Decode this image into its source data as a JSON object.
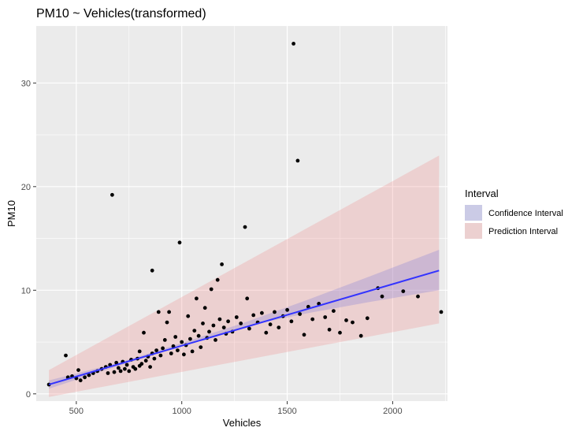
{
  "chart_data": {
    "type": "scatter",
    "title": "PM10 ~ Vehicles(transformed)",
    "xlabel": "Vehicles",
    "ylabel": "PM10",
    "xlim": [
      310,
      2260
    ],
    "ylim": [
      -0.7,
      35.5
    ],
    "x_ticks": [
      500,
      1000,
      1500,
      2000
    ],
    "y_ticks": [
      0,
      10,
      20,
      30
    ],
    "grid": true,
    "legend": {
      "title": "Interval",
      "placement": "right",
      "items": [
        {
          "label": "Confidence Interval",
          "color": "#6b6bd6",
          "opacity": 0.25
        },
        {
          "label": "Prediction Interval",
          "color": "#f08080",
          "opacity": 0.25
        }
      ]
    },
    "colors": {
      "panel": "#ebebeb",
      "grid": "#ffffff",
      "points": "#000000",
      "fit_line": "#3333ff",
      "confidence": "#6b6bd6",
      "prediction": "#f08080"
    },
    "fit_line": {
      "x": [
        370,
        2220
      ],
      "y": [
        0.9,
        11.9
      ]
    },
    "confidence_band": {
      "x": [
        370,
        700,
        1000,
        1300,
        1600,
        1900,
        2220
      ],
      "lower": [
        0.5,
        2.7,
        4.6,
        6.5,
        7.8,
        8.9,
        10.0
      ],
      "upper": [
        1.3,
        3.0,
        4.9,
        6.9,
        9.1,
        11.4,
        13.9
      ]
    },
    "prediction_band": {
      "x": [
        370,
        2220
      ],
      "lower": [
        -0.3,
        6.8
      ],
      "upper": [
        2.3,
        23.0
      ]
    },
    "points": [
      {
        "x": 370,
        "y": 0.9
      },
      {
        "x": 450,
        "y": 3.7
      },
      {
        "x": 460,
        "y": 1.6
      },
      {
        "x": 480,
        "y": 1.7
      },
      {
        "x": 500,
        "y": 1.5
      },
      {
        "x": 510,
        "y": 2.3
      },
      {
        "x": 520,
        "y": 1.3
      },
      {
        "x": 540,
        "y": 1.6
      },
      {
        "x": 560,
        "y": 1.8
      },
      {
        "x": 580,
        "y": 2.0
      },
      {
        "x": 600,
        "y": 2.2
      },
      {
        "x": 620,
        "y": 2.4
      },
      {
        "x": 640,
        "y": 2.6
      },
      {
        "x": 650,
        "y": 2.0
      },
      {
        "x": 660,
        "y": 2.8
      },
      {
        "x": 670,
        "y": 19.2
      },
      {
        "x": 680,
        "y": 2.1
      },
      {
        "x": 690,
        "y": 3.0
      },
      {
        "x": 700,
        "y": 2.5
      },
      {
        "x": 710,
        "y": 2.2
      },
      {
        "x": 720,
        "y": 3.1
      },
      {
        "x": 730,
        "y": 2.4
      },
      {
        "x": 740,
        "y": 2.8
      },
      {
        "x": 750,
        "y": 2.2
      },
      {
        "x": 760,
        "y": 3.3
      },
      {
        "x": 770,
        "y": 2.6
      },
      {
        "x": 780,
        "y": 2.4
      },
      {
        "x": 790,
        "y": 3.4
      },
      {
        "x": 800,
        "y": 4.1
      },
      {
        "x": 800,
        "y": 2.7
      },
      {
        "x": 810,
        "y": 2.9
      },
      {
        "x": 820,
        "y": 5.9
      },
      {
        "x": 830,
        "y": 3.2
      },
      {
        "x": 840,
        "y": 3.6
      },
      {
        "x": 850,
        "y": 2.6
      },
      {
        "x": 860,
        "y": 11.9
      },
      {
        "x": 860,
        "y": 3.9
      },
      {
        "x": 870,
        "y": 3.4
      },
      {
        "x": 880,
        "y": 4.2
      },
      {
        "x": 890,
        "y": 7.9
      },
      {
        "x": 900,
        "y": 3.7
      },
      {
        "x": 910,
        "y": 4.4
      },
      {
        "x": 920,
        "y": 5.2
      },
      {
        "x": 930,
        "y": 6.9
      },
      {
        "x": 940,
        "y": 7.9
      },
      {
        "x": 950,
        "y": 3.9
      },
      {
        "x": 960,
        "y": 4.6
      },
      {
        "x": 970,
        "y": 5.5
      },
      {
        "x": 980,
        "y": 4.2
      },
      {
        "x": 990,
        "y": 14.6
      },
      {
        "x": 1000,
        "y": 5.0
      },
      {
        "x": 1010,
        "y": 3.8
      },
      {
        "x": 1020,
        "y": 4.7
      },
      {
        "x": 1030,
        "y": 7.5
      },
      {
        "x": 1040,
        "y": 5.3
      },
      {
        "x": 1050,
        "y": 4.1
      },
      {
        "x": 1060,
        "y": 6.1
      },
      {
        "x": 1070,
        "y": 9.2
      },
      {
        "x": 1080,
        "y": 5.6
      },
      {
        "x": 1090,
        "y": 4.5
      },
      {
        "x": 1100,
        "y": 6.8
      },
      {
        "x": 1110,
        "y": 8.3
      },
      {
        "x": 1120,
        "y": 5.4
      },
      {
        "x": 1130,
        "y": 6.0
      },
      {
        "x": 1140,
        "y": 10.1
      },
      {
        "x": 1150,
        "y": 6.6
      },
      {
        "x": 1160,
        "y": 5.2
      },
      {
        "x": 1170,
        "y": 11.0
      },
      {
        "x": 1180,
        "y": 7.2
      },
      {
        "x": 1190,
        "y": 12.5
      },
      {
        "x": 1200,
        "y": 6.4
      },
      {
        "x": 1210,
        "y": 5.8
      },
      {
        "x": 1220,
        "y": 7.0
      },
      {
        "x": 1240,
        "y": 6.0
      },
      {
        "x": 1260,
        "y": 7.4
      },
      {
        "x": 1280,
        "y": 6.8
      },
      {
        "x": 1300,
        "y": 16.1
      },
      {
        "x": 1310,
        "y": 9.2
      },
      {
        "x": 1320,
        "y": 6.3
      },
      {
        "x": 1340,
        "y": 7.6
      },
      {
        "x": 1360,
        "y": 6.9
      },
      {
        "x": 1380,
        "y": 7.8
      },
      {
        "x": 1400,
        "y": 5.9
      },
      {
        "x": 1420,
        "y": 6.7
      },
      {
        "x": 1440,
        "y": 7.9
      },
      {
        "x": 1460,
        "y": 6.4
      },
      {
        "x": 1480,
        "y": 7.5
      },
      {
        "x": 1500,
        "y": 8.1
      },
      {
        "x": 1520,
        "y": 7.0
      },
      {
        "x": 1530,
        "y": 33.8
      },
      {
        "x": 1550,
        "y": 22.5
      },
      {
        "x": 1560,
        "y": 7.7
      },
      {
        "x": 1580,
        "y": 5.7
      },
      {
        "x": 1600,
        "y": 8.4
      },
      {
        "x": 1620,
        "y": 7.2
      },
      {
        "x": 1650,
        "y": 8.7
      },
      {
        "x": 1680,
        "y": 7.4
      },
      {
        "x": 1700,
        "y": 6.2
      },
      {
        "x": 1720,
        "y": 8.0
      },
      {
        "x": 1750,
        "y": 5.9
      },
      {
        "x": 1780,
        "y": 7.1
      },
      {
        "x": 1810,
        "y": 6.9
      },
      {
        "x": 1850,
        "y": 5.6
      },
      {
        "x": 1880,
        "y": 7.3
      },
      {
        "x": 1930,
        "y": 10.2
      },
      {
        "x": 1950,
        "y": 9.4
      },
      {
        "x": 2050,
        "y": 9.9
      },
      {
        "x": 2120,
        "y": 9.4
      },
      {
        "x": 2230,
        "y": 7.9
      }
    ]
  }
}
